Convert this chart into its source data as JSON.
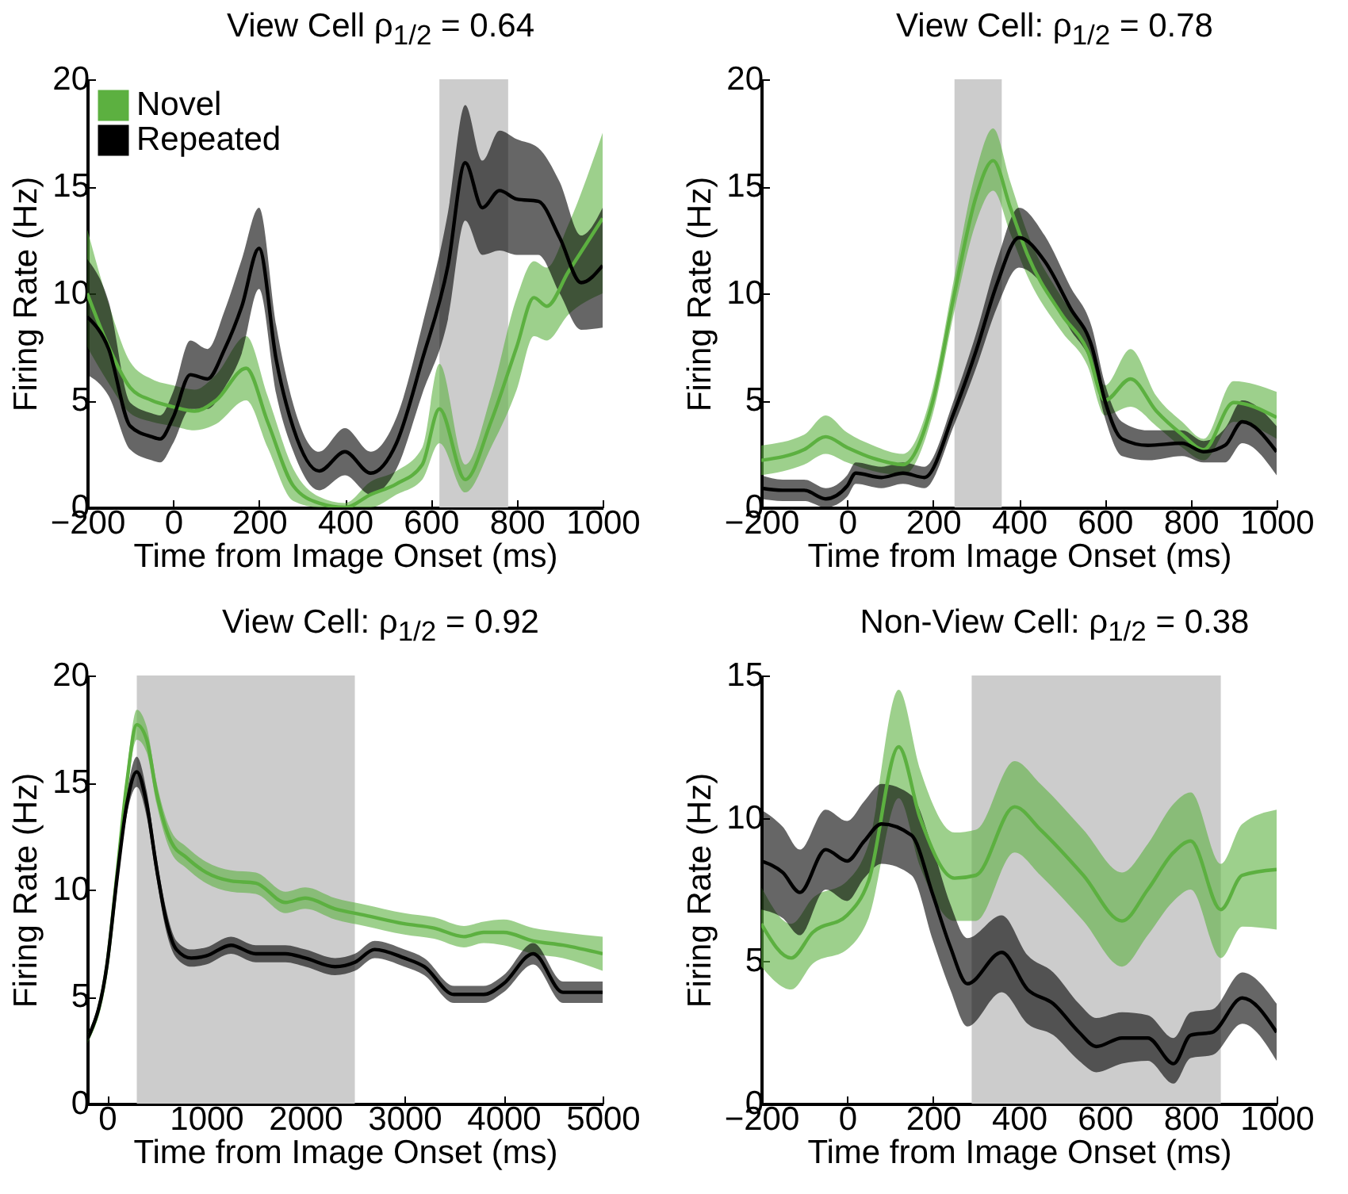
{
  "chart_data": [
    {
      "type": "line",
      "title": "View Cell ρ$_{1/2}$ = 0.64",
      "xlabel": "Time from Image Onset (ms)",
      "ylabel": "Firing Rate (Hz)",
      "xlim": [
        -200,
        1000
      ],
      "xticks": [
        -200,
        0,
        200,
        400,
        600,
        800,
        1000
      ],
      "ylim": [
        0,
        20
      ],
      "yticks": [
        0,
        5,
        10,
        15,
        20
      ],
      "legend": "top left",
      "bands": [
        {
          "axis": "x",
          "from": 620,
          "to": 780,
          "color": "#cccccc"
        }
      ],
      "series": [
        {
          "name": "Novel",
          "color": "#5cb040",
          "x": [
            -200,
            -150,
            -100,
            -50,
            0,
            50,
            100,
            170,
            220,
            280,
            340,
            400,
            460,
            520,
            580,
            620,
            680,
            740,
            800,
            840,
            870,
            920,
            1000
          ],
          "values": [
            10.0,
            7.5,
            5.6,
            5.0,
            4.7,
            4.5,
            5.0,
            6.5,
            4.0,
            1.0,
            0.2,
            0.0,
            0.6,
            1.1,
            2.0,
            4.6,
            1.3,
            4.0,
            7.5,
            9.8,
            9.4,
            11.0,
            13.5
          ],
          "lower": [
            7.5,
            5.8,
            4.4,
            4.0,
            3.8,
            3.6,
            3.9,
            5.0,
            2.8,
            0.3,
            0,
            0,
            0,
            0.6,
            1.3,
            3.0,
            0.7,
            2.8,
            5.5,
            8.0,
            7.8,
            9.0,
            10.0
          ],
          "upper": [
            13.0,
            9.5,
            6.8,
            6.0,
            5.7,
            5.5,
            6.2,
            8.0,
            5.2,
            1.8,
            0.5,
            0.2,
            1.2,
            1.7,
            2.8,
            6.7,
            2.0,
            5.2,
            9.8,
            11.5,
            11.2,
            13.2,
            17.5
          ]
        },
        {
          "name": "Repeated",
          "color": "#000000",
          "x": [
            -200,
            -150,
            -100,
            -50,
            -30,
            0,
            40,
            80,
            120,
            160,
            200,
            240,
            280,
            340,
            400,
            460,
            520,
            580,
            640,
            680,
            720,
            760,
            800,
            850,
            900,
            950,
            1000
          ],
          "values": [
            8.9,
            7.4,
            3.8,
            3.3,
            3.2,
            4.2,
            6.2,
            6.0,
            7.4,
            9.4,
            12.1,
            6.9,
            3.7,
            1.7,
            2.6,
            1.6,
            3.0,
            6.9,
            11.3,
            16.1,
            14.0,
            14.8,
            14.4,
            14.3,
            12.6,
            10.5,
            11.3
          ],
          "lower": [
            6.2,
            5.2,
            2.7,
            2.2,
            2.1,
            3.0,
            4.6,
            4.6,
            5.6,
            7.2,
            10.2,
            5.3,
            2.6,
            0.8,
            1.5,
            0.6,
            1.8,
            5.3,
            8.8,
            13.4,
            11.8,
            12.0,
            11.8,
            11.8,
            10.0,
            8.3,
            8.4
          ],
          "upper": [
            11.6,
            9.6,
            4.9,
            4.4,
            4.3,
            5.4,
            7.8,
            7.4,
            9.2,
            11.6,
            14.0,
            8.5,
            4.8,
            2.6,
            3.7,
            2.6,
            4.2,
            8.5,
            13.8,
            18.8,
            16.2,
            17.6,
            17.2,
            16.8,
            15.2,
            12.7,
            14.0
          ]
        }
      ]
    },
    {
      "type": "line",
      "title": "View Cell: ρ$_{1/2}$ = 0.78",
      "xlabel": "Time from Image Onset (ms)",
      "ylabel": "Firing Rate (Hz)",
      "xlim": [
        -200,
        1000
      ],
      "xticks": [
        -200,
        0,
        200,
        400,
        600,
        800,
        1000
      ],
      "ylim": [
        0,
        20
      ],
      "yticks": [
        0,
        5,
        10,
        15,
        20
      ],
      "bands": [
        {
          "axis": "x",
          "from": 250,
          "to": 360,
          "color": "#cccccc"
        }
      ],
      "series": [
        {
          "color": "#5cb040",
          "x": [
            -200,
            -100,
            -50,
            0,
            60,
            130,
            200,
            250,
            300,
            340,
            380,
            420,
            500,
            560,
            600,
            660,
            720,
            780,
            830,
            900,
            1000
          ],
          "values": [
            2.2,
            2.7,
            3.3,
            2.8,
            2.3,
            2.0,
            5.0,
            10.0,
            14.5,
            16.2,
            14.0,
            11.8,
            9.0,
            7.3,
            5.0,
            6.0,
            4.5,
            3.4,
            2.7,
            4.9,
            4.2
          ],
          "lower": [
            1.5,
            2.0,
            2.5,
            2.1,
            1.7,
            1.5,
            4.4,
            9.2,
            13.3,
            14.8,
            12.8,
            10.8,
            8.2,
            6.6,
            4.3,
            4.7,
            3.8,
            2.8,
            2.2,
            4.0,
            3.2
          ],
          "upper": [
            2.9,
            3.4,
            4.3,
            3.5,
            2.9,
            2.5,
            5.6,
            10.8,
            15.7,
            17.7,
            15.2,
            12.8,
            9.8,
            8.0,
            5.7,
            7.4,
            5.2,
            4.0,
            3.2,
            5.9,
            5.4
          ]
        },
        {
          "color": "#000000",
          "x": [
            -200,
            -150,
            -100,
            -50,
            0,
            20,
            80,
            130,
            180,
            250,
            300,
            350,
            400,
            460,
            520,
            570,
            600,
            640,
            700,
            780,
            830,
            880,
            920,
            1000
          ],
          "values": [
            0.9,
            0.8,
            0.8,
            0.4,
            1.0,
            1.6,
            1.4,
            1.6,
            1.4,
            4.5,
            7.3,
            10.5,
            12.6,
            11.5,
            9.3,
            7.5,
            5.0,
            3.2,
            2.9,
            3.0,
            2.6,
            2.9,
            4.0,
            2.6
          ],
          "lower": [
            0.4,
            0.3,
            0.3,
            0,
            0.5,
            1.1,
            0.9,
            1.1,
            0.9,
            3.9,
            6.5,
            9.4,
            11.2,
            10.3,
            8.3,
            6.6,
            4.2,
            2.4,
            2.2,
            2.4,
            2.1,
            2.1,
            3.0,
            1.5
          ],
          "upper": [
            1.5,
            1.3,
            1.3,
            0.9,
            1.5,
            2.1,
            1.9,
            2.1,
            1.9,
            5.1,
            8.1,
            11.6,
            14.0,
            12.7,
            10.3,
            8.4,
            5.8,
            4.0,
            3.6,
            3.6,
            3.1,
            3.7,
            5.0,
            3.8
          ]
        }
      ]
    },
    {
      "type": "line",
      "title": "View Cell: ρ$_{1/2}$ = 0.92",
      "xlabel": "Time from Image Onset (ms)",
      "ylabel": "Firing Rate (Hz)",
      "xlim": [
        -200,
        5000
      ],
      "xticks": [
        0,
        1000,
        2000,
        3000,
        4000,
        5000
      ],
      "ylim": [
        0,
        20
      ],
      "yticks": [
        0,
        5,
        10,
        15,
        20
      ],
      "bands": [
        {
          "axis": "x",
          "from": 300,
          "to": 2500,
          "color": "#cccccc"
        }
      ],
      "series": [
        {
          "color": "#5cb040",
          "x": [
            -200,
            0,
            100,
            200,
            300,
            400,
            500,
            650,
            800,
            1000,
            1250,
            1500,
            1800,
            2000,
            2300,
            2600,
            3000,
            3300,
            3600,
            3800,
            4000,
            4300,
            4600,
            5000
          ],
          "values": [
            3.0,
            6.5,
            10.7,
            15.0,
            17.7,
            17.0,
            14.5,
            12.2,
            11.5,
            10.8,
            10.4,
            10.3,
            9.4,
            9.6,
            9.1,
            8.8,
            8.4,
            8.2,
            7.8,
            8.0,
            8.0,
            7.6,
            7.4,
            7.0
          ],
          "lower": [
            2.8,
            6.2,
            10.3,
            14.5,
            17.0,
            16.4,
            14.0,
            11.7,
            11.0,
            10.3,
            9.9,
            9.8,
            8.9,
            9.1,
            8.6,
            8.3,
            7.9,
            7.7,
            7.3,
            7.5,
            7.4,
            7.0,
            6.8,
            6.2
          ],
          "upper": [
            3.2,
            6.8,
            11.1,
            15.5,
            18.4,
            17.6,
            15.0,
            12.7,
            12.0,
            11.3,
            10.9,
            10.8,
            9.9,
            10.1,
            9.6,
            9.3,
            8.9,
            8.7,
            8.3,
            8.5,
            8.6,
            8.2,
            8.0,
            7.8
          ]
        },
        {
          "color": "#000000",
          "x": [
            -200,
            0,
            100,
            200,
            300,
            400,
            500,
            600,
            700,
            850,
            1000,
            1250,
            1500,
            1800,
            2000,
            2300,
            2500,
            2700,
            3000,
            3200,
            3500,
            3800,
            4000,
            4300,
            4600,
            5000
          ],
          "values": [
            3.0,
            6.5,
            10.5,
            14.0,
            15.5,
            14.0,
            11.0,
            8.5,
            7.2,
            6.8,
            6.9,
            7.4,
            7.0,
            7.0,
            6.8,
            6.4,
            6.6,
            7.2,
            6.8,
            6.4,
            5.1,
            5.1,
            5.6,
            7.0,
            5.2,
            5.2
          ],
          "lower": [
            2.8,
            6.2,
            10.1,
            13.5,
            14.8,
            13.4,
            10.5,
            8.0,
            6.8,
            6.4,
            6.5,
            7.0,
            6.6,
            6.6,
            6.4,
            6.0,
            6.2,
            6.8,
            6.4,
            6.0,
            4.7,
            4.7,
            5.2,
            6.5,
            4.7,
            4.7
          ],
          "upper": [
            3.2,
            6.8,
            10.9,
            14.5,
            16.2,
            14.6,
            11.5,
            9.0,
            7.6,
            7.2,
            7.3,
            7.8,
            7.4,
            7.4,
            7.2,
            6.8,
            7.0,
            7.6,
            7.2,
            6.8,
            5.5,
            5.5,
            6.0,
            7.5,
            5.7,
            5.7
          ]
        }
      ]
    },
    {
      "type": "line",
      "title": "Non-View Cell: ρ$_{1/2}$ = 0.38",
      "xlabel": "Time from Image Onset (ms)",
      "ylabel": "Firing Rate (Hz)",
      "xlim": [
        -200,
        1000
      ],
      "xticks": [
        -200,
        0,
        200,
        400,
        600,
        800,
        1000
      ],
      "ylim": [
        0,
        15
      ],
      "yticks": [
        0,
        5,
        10,
        15
      ],
      "bands": [
        {
          "axis": "x",
          "from": 290,
          "to": 870,
          "color": "#cccccc"
        }
      ],
      "series": [
        {
          "color": "#5cb040",
          "x": [
            -200,
            -130,
            -80,
            0,
            50,
            120,
            170,
            250,
            300,
            390,
            450,
            550,
            640,
            700,
            760,
            800,
            870,
            920,
            1000
          ],
          "values": [
            6.3,
            5.1,
            6.0,
            6.6,
            7.8,
            12.5,
            10.0,
            7.9,
            8.0,
            10.4,
            9.6,
            8.0,
            6.4,
            7.5,
            8.8,
            9.2,
            6.8,
            8.0,
            8.2
          ],
          "lower": [
            4.8,
            4.0,
            4.9,
            5.4,
            6.5,
            10.7,
            8.3,
            6.4,
            6.4,
            8.8,
            8.0,
            6.4,
            4.8,
            5.9,
            7.1,
            7.5,
            5.1,
            6.2,
            6.1
          ],
          "upper": [
            7.6,
            6.3,
            7.2,
            7.8,
            9.1,
            14.5,
            11.7,
            9.5,
            9.6,
            12.0,
            11.2,
            9.6,
            8.1,
            9.1,
            10.5,
            10.9,
            8.4,
            9.8,
            10.3
          ]
        },
        {
          "color": "#000000",
          "x": [
            -200,
            -150,
            -110,
            -50,
            0,
            40,
            80,
            150,
            200,
            240,
            280,
            360,
            420,
            480,
            540,
            580,
            640,
            700,
            760,
            800,
            850,
            920,
            1000
          ],
          "values": [
            8.5,
            8.1,
            7.4,
            8.9,
            8.5,
            9.2,
            9.8,
            9.4,
            7.3,
            5.5,
            4.2,
            5.3,
            4.0,
            3.5,
            2.5,
            2.0,
            2.3,
            2.3,
            1.4,
            2.4,
            2.5,
            3.7,
            2.5
          ],
          "lower": [
            6.8,
            6.5,
            5.9,
            7.5,
            7.1,
            7.9,
            8.4,
            8.0,
            5.7,
            4.0,
            2.7,
            3.9,
            2.8,
            2.4,
            1.5,
            1.1,
            1.4,
            1.5,
            0.7,
            1.6,
            1.7,
            2.8,
            1.5
          ],
          "upper": [
            10.3,
            9.7,
            8.9,
            10.3,
            9.9,
            10.6,
            11.2,
            10.8,
            8.9,
            7.0,
            5.8,
            6.6,
            5.2,
            4.6,
            3.5,
            3.0,
            3.2,
            3.1,
            2.3,
            3.2,
            3.3,
            4.6,
            3.5
          ]
        }
      ]
    }
  ]
}
